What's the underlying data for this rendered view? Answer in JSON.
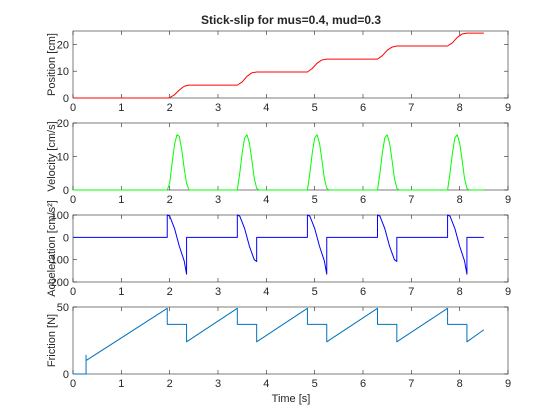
{
  "figure": {
    "title": "Stick-slip for mus=0.4, mud=0.3",
    "background": "#ffffff",
    "axis_color": "#262626",
    "xlabel": "Time [s]"
  },
  "chart_data": [
    {
      "type": "line",
      "ylabel": "Position [cm]",
      "xlim": [
        0,
        9
      ],
      "ylim": [
        0,
        25
      ],
      "xticks": [
        0,
        1,
        2,
        3,
        4,
        5,
        6,
        7,
        8,
        9
      ],
      "yticks": [
        0,
        10,
        20
      ],
      "grid": false,
      "series": [
        {
          "color": "#ff0000",
          "x": [
            0,
            1.95,
            2.0,
            2.1,
            2.2,
            2.3,
            2.4,
            3.4,
            3.5,
            3.6,
            3.7,
            3.8,
            3.85,
            4.85,
            4.95,
            5.05,
            5.15,
            5.25,
            5.3,
            6.3,
            6.4,
            6.5,
            6.6,
            6.7,
            6.75,
            7.75,
            7.85,
            7.95,
            8.05,
            8.15,
            8.2,
            8.5
          ],
          "y": [
            0,
            0,
            0.1,
            1.2,
            3.0,
            4.4,
            4.8,
            4.8,
            6.0,
            8.1,
            9.4,
            9.7,
            9.7,
            9.7,
            11.0,
            13.0,
            14.2,
            14.5,
            14.5,
            14.5,
            15.8,
            17.8,
            19.0,
            19.4,
            19.4,
            19.4,
            20.6,
            22.6,
            23.9,
            24.2,
            24.2,
            24.2
          ]
        }
      ]
    },
    {
      "type": "line",
      "ylabel": "Velocity [cm/s]",
      "xlim": [
        0,
        9
      ],
      "ylim": [
        0,
        20
      ],
      "xticks": [
        0,
        1,
        2,
        3,
        4,
        5,
        6,
        7,
        8,
        9
      ],
      "yticks": [
        0,
        10,
        20
      ],
      "grid": false,
      "series": [
        {
          "color": "#00ff00",
          "x": [
            0,
            1.95,
            2.0,
            2.05,
            2.1,
            2.15,
            2.2,
            2.25,
            2.3,
            2.35,
            2.4,
            2.45,
            3.4,
            3.45,
            3.5,
            3.55,
            3.6,
            3.65,
            3.7,
            3.75,
            3.8,
            3.85,
            4.85,
            4.9,
            4.95,
            5.0,
            5.05,
            5.1,
            5.15,
            5.2,
            5.25,
            5.3,
            6.3,
            6.35,
            6.4,
            6.45,
            6.5,
            6.55,
            6.6,
            6.65,
            6.7,
            6.75,
            7.75,
            7.8,
            7.85,
            7.9,
            7.95,
            8.0,
            8.05,
            8.1,
            8.15,
            8.2,
            8.5
          ],
          "y": [
            0,
            0,
            2,
            8,
            13.5,
            16.5,
            16,
            12,
            6.5,
            2,
            0,
            0,
            0,
            5,
            11,
            15.5,
            16.5,
            14,
            9,
            3.5,
            0.5,
            0,
            0,
            5,
            11,
            15.5,
            16.5,
            14,
            9,
            3.5,
            0.5,
            0,
            0,
            5,
            11,
            15.5,
            16.5,
            14,
            9,
            3.5,
            0.5,
            0,
            0,
            5,
            11,
            15.5,
            16.5,
            14,
            9,
            3.5,
            0.5,
            0,
            0
          ]
        }
      ]
    },
    {
      "type": "line",
      "ylabel": "Acceleration [cm/s²]",
      "xlim": [
        0,
        9
      ],
      "ylim": [
        -200,
        100
      ],
      "xticks": [
        0,
        1,
        2,
        3,
        4,
        5,
        6,
        7,
        8,
        9
      ],
      "yticks": [
        -200,
        -100,
        0,
        100
      ],
      "grid": false,
      "series": [
        {
          "color": "#0000ff",
          "x": [
            0,
            1.95,
            1.95,
            2.0,
            2.1,
            2.2,
            2.3,
            2.35,
            2.35,
            2.35,
            3.4,
            3.4,
            3.45,
            3.55,
            3.65,
            3.75,
            3.8,
            3.8,
            3.8,
            4.85,
            4.85,
            4.9,
            5.0,
            5.1,
            5.2,
            5.25,
            5.25,
            5.25,
            6.3,
            6.3,
            6.35,
            6.45,
            6.55,
            6.65,
            6.7,
            6.7,
            6.7,
            7.75,
            7.75,
            7.8,
            7.9,
            8.0,
            8.1,
            8.15,
            8.15,
            8.15,
            8.5
          ],
          "y": [
            0,
            0,
            100,
            95,
            40,
            -40,
            -105,
            -165,
            -15,
            0,
            0,
            100,
            95,
            40,
            -40,
            -100,
            -108,
            -15,
            0,
            0,
            100,
            95,
            40,
            -40,
            -105,
            -165,
            -15,
            0,
            0,
            100,
            95,
            40,
            -40,
            -100,
            -108,
            -15,
            0,
            0,
            100,
            95,
            40,
            -40,
            -105,
            -165,
            -15,
            0,
            0
          ]
        }
      ]
    },
    {
      "type": "line",
      "ylabel": "Friction [N]",
      "xlim": [
        0,
        9
      ],
      "ylim": [
        0,
        50
      ],
      "xticks": [
        0,
        1,
        2,
        3,
        4,
        5,
        6,
        7,
        8,
        9
      ],
      "yticks": [
        0,
        50
      ],
      "grid": false,
      "series": [
        {
          "color": "#0072bd",
          "x": [
            0,
            0.27,
            0.27,
            0.27,
            0.27,
            1.95,
            1.95,
            2.35,
            2.35,
            3.4,
            3.4,
            3.8,
            3.8,
            4.85,
            4.85,
            5.25,
            5.25,
            6.3,
            6.3,
            6.7,
            6.7,
            7.75,
            7.75,
            8.15,
            8.15,
            8.5
          ],
          "y": [
            0,
            0,
            14,
            7,
            10,
            49,
            37,
            37,
            24,
            49,
            37,
            37,
            24,
            49,
            37,
            37,
            24,
            49,
            37,
            37,
            24,
            49,
            37,
            37,
            24,
            33
          ]
        }
      ]
    }
  ]
}
